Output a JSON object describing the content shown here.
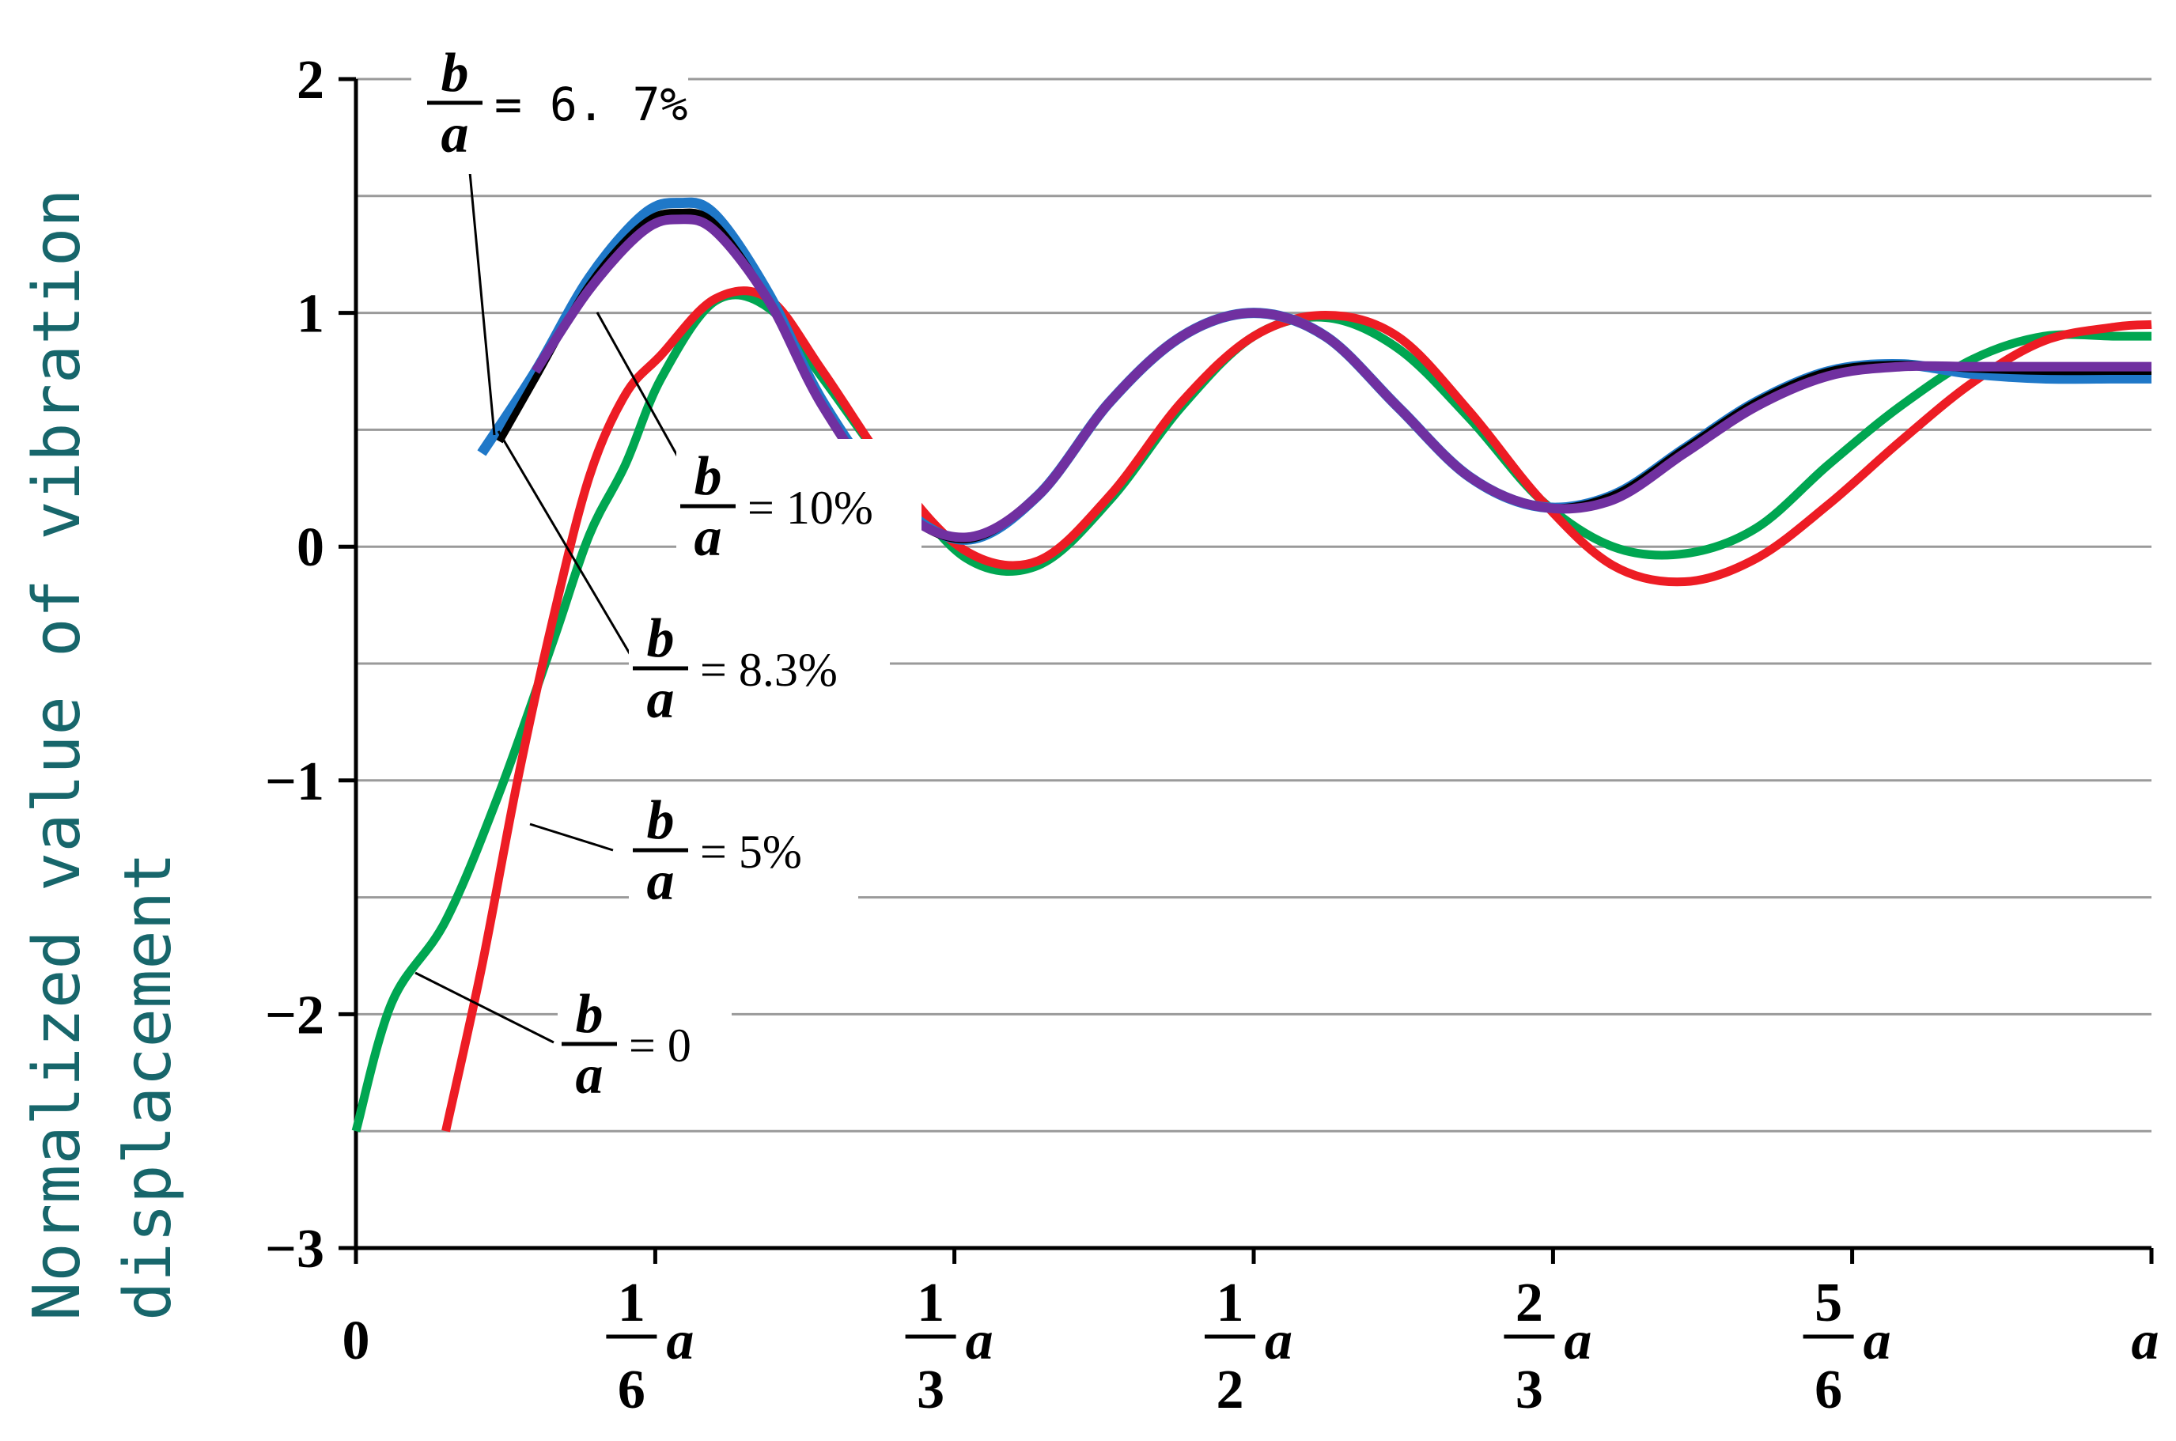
{
  "chart_data": {
    "type": "line",
    "ylabel_lines": [
      "Normalized value of vibration",
      "displacement"
    ],
    "xlabel": "",
    "ylim": [
      -3,
      2
    ],
    "xlim": [
      0,
      1
    ],
    "y_ticks": [
      {
        "value": 2,
        "label": "2"
      },
      {
        "value": 1,
        "label": "1"
      },
      {
        "value": 0,
        "label": "0"
      },
      {
        "value": -1,
        "label": "−1"
      },
      {
        "value": -2,
        "label": "−2"
      },
      {
        "value": -3,
        "label": "−3"
      }
    ],
    "x_ticks": [
      {
        "value": 0,
        "num": "",
        "den": "",
        "suffix": "",
        "plain": "0"
      },
      {
        "value": 0.1667,
        "num": "1",
        "den": "6",
        "suffix": "a",
        "plain": ""
      },
      {
        "value": 0.3333,
        "num": "1",
        "den": "3",
        "suffix": "a",
        "plain": ""
      },
      {
        "value": 0.5,
        "num": "1",
        "den": "2",
        "suffix": "a",
        "plain": ""
      },
      {
        "value": 0.6667,
        "num": "2",
        "den": "3",
        "suffix": "a",
        "plain": ""
      },
      {
        "value": 0.8333,
        "num": "5",
        "den": "6",
        "suffix": "a",
        "plain": ""
      },
      {
        "value": 1.0,
        "num": "",
        "den": "",
        "suffix": "",
        "plain": "a"
      }
    ],
    "grid": true,
    "series": [
      {
        "name": "b/a = 0",
        "color": "#00a651",
        "x": [
          0.0,
          0.02,
          0.05,
          0.08,
          0.11,
          0.13,
          0.15,
          0.17,
          0.2,
          0.23,
          0.26,
          0.3,
          0.34,
          0.38,
          0.42,
          0.46,
          0.5,
          0.54,
          0.58,
          0.62,
          0.66,
          0.7,
          0.74,
          0.78,
          0.82,
          0.86,
          0.9,
          0.94,
          0.98,
          1.0
        ],
        "y": [
          -2.5,
          -1.95,
          -1.6,
          -1.05,
          -0.4,
          0.05,
          0.35,
          0.72,
          1.05,
          1.02,
          0.72,
          0.3,
          -0.05,
          -0.08,
          0.2,
          0.6,
          0.9,
          0.98,
          0.85,
          0.55,
          0.2,
          0.0,
          -0.03,
          0.08,
          0.35,
          0.6,
          0.8,
          0.9,
          0.9,
          0.9
        ]
      },
      {
        "name": "b/a = 5%",
        "color": "#ed1c24",
        "x": [
          0.05,
          0.07,
          0.09,
          0.11,
          0.13,
          0.15,
          0.17,
          0.2,
          0.23,
          0.26,
          0.3,
          0.34,
          0.38,
          0.42,
          0.46,
          0.5,
          0.54,
          0.58,
          0.62,
          0.66,
          0.7,
          0.74,
          0.78,
          0.82,
          0.86,
          0.9,
          0.94,
          0.98,
          1.0
        ],
        "y": [
          -2.5,
          -1.8,
          -1.0,
          -0.3,
          0.3,
          0.65,
          0.82,
          1.06,
          1.06,
          0.75,
          0.3,
          -0.02,
          -0.06,
          0.22,
          0.62,
          0.9,
          0.99,
          0.9,
          0.58,
          0.2,
          -0.08,
          -0.15,
          -0.05,
          0.18,
          0.45,
          0.7,
          0.88,
          0.94,
          0.95
        ]
      },
      {
        "name": "b/a = 6.7%",
        "color": "#1f78c8",
        "x": [
          0.07,
          0.1,
          0.13,
          0.16,
          0.18,
          0.2,
          0.23,
          0.26,
          0.3,
          0.34,
          0.38,
          0.42,
          0.46,
          0.5,
          0.54,
          0.58,
          0.62,
          0.66,
          0.7,
          0.74,
          0.78,
          0.82,
          0.86,
          0.9,
          0.94,
          0.98,
          1.0
        ],
        "y": [
          0.4,
          0.75,
          1.15,
          1.42,
          1.47,
          1.42,
          1.08,
          0.62,
          0.2,
          0.03,
          0.22,
          0.62,
          0.9,
          1.0,
          0.9,
          0.6,
          0.3,
          0.17,
          0.22,
          0.42,
          0.62,
          0.75,
          0.78,
          0.74,
          0.72,
          0.72,
          0.72
        ]
      },
      {
        "name": "b/a = 8.3%",
        "color": "#000000",
        "x": [
          0.08,
          0.1,
          0.13,
          0.16,
          0.18,
          0.2,
          0.23,
          0.26,
          0.3,
          0.34,
          0.38,
          0.42,
          0.46,
          0.5,
          0.54,
          0.58,
          0.62,
          0.66,
          0.7,
          0.74,
          0.78,
          0.82,
          0.86,
          0.9,
          0.94,
          0.98,
          1.0
        ],
        "y": [
          0.45,
          0.72,
          1.12,
          1.38,
          1.43,
          1.38,
          1.05,
          0.6,
          0.18,
          0.03,
          0.22,
          0.62,
          0.9,
          1.0,
          0.9,
          0.6,
          0.3,
          0.17,
          0.22,
          0.42,
          0.62,
          0.75,
          0.78,
          0.76,
          0.75,
          0.75,
          0.75
        ]
      },
      {
        "name": "b/a = 10%",
        "color": "#7030a0",
        "x": [
          0.1,
          0.13,
          0.16,
          0.18,
          0.2,
          0.23,
          0.26,
          0.3,
          0.34,
          0.38,
          0.42,
          0.46,
          0.5,
          0.54,
          0.58,
          0.62,
          0.66,
          0.7,
          0.74,
          0.78,
          0.82,
          0.86,
          0.9,
          0.94,
          0.98,
          1.0
        ],
        "y": [
          0.75,
          1.1,
          1.35,
          1.4,
          1.35,
          1.05,
          0.6,
          0.18,
          0.04,
          0.22,
          0.62,
          0.9,
          1.0,
          0.9,
          0.6,
          0.3,
          0.17,
          0.2,
          0.4,
          0.6,
          0.73,
          0.77,
          0.77,
          0.77,
          0.77,
          0.77
        ]
      }
    ],
    "annotations": [
      {
        "num": "b",
        "den": "a",
        "text": "= 6. 7%",
        "mono": true,
        "target_series": "b/a = 6.7%"
      },
      {
        "num": "b",
        "den": "a",
        "text": "= 10%",
        "mono": false,
        "target_series": "b/a = 10%"
      },
      {
        "num": "b",
        "den": "a",
        "text": "= 8.3%",
        "mono": false,
        "target_series": "b/a = 8.3%"
      },
      {
        "num": "b",
        "den": "a",
        "text": "= 5%",
        "mono": false,
        "target_series": "b/a = 5%"
      },
      {
        "num": "b",
        "den": "a",
        "text": "= 0",
        "mono": false,
        "target_series": "b/a = 0"
      }
    ]
  }
}
